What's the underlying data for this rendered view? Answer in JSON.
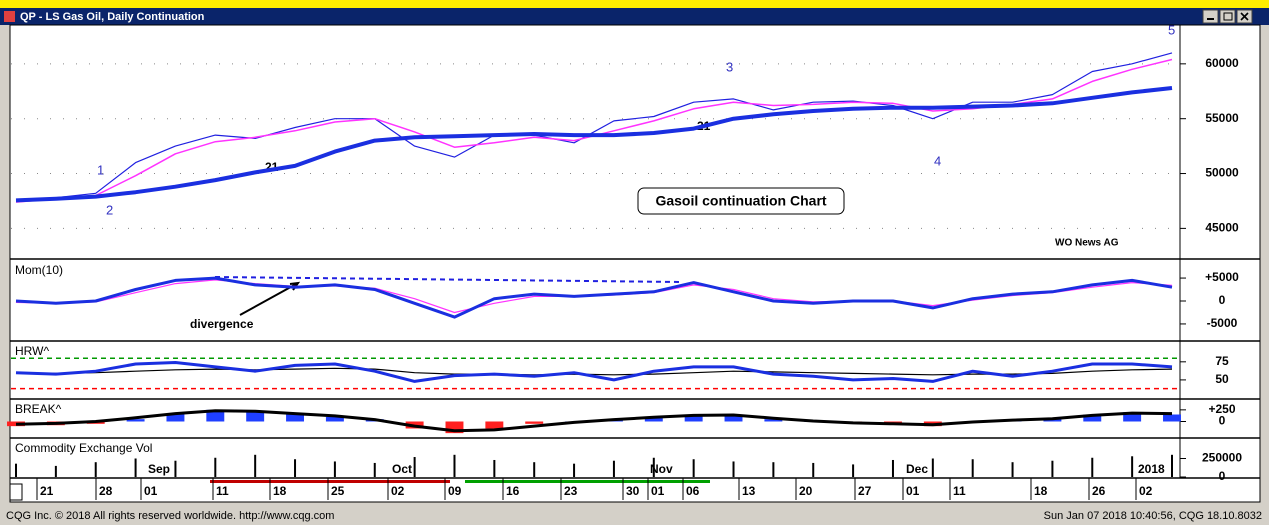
{
  "window": {
    "title": "QP - LS Gas Oil, Daily Continuation"
  },
  "chart_data": [
    {
      "type": "line",
      "ylim": [
        42300,
        63450
      ],
      "yticks": [
        45000,
        50000,
        55000,
        60000
      ],
      "grid": true,
      "series": [
        {
          "color": "#2020e0",
          "width": 1.2,
          "values": [
            47500,
            47800,
            48200,
            51000,
            52500,
            53500,
            53200,
            54200,
            55000,
            55000,
            52500,
            51500,
            53500,
            53500,
            52800,
            54800,
            55200,
            56500,
            56800,
            55800,
            56500,
            56600,
            56200,
            55000,
            56500,
            56500,
            57200,
            59300,
            60000,
            61000
          ]
        },
        {
          "color": "#ff33ff",
          "width": 1.5,
          "values": [
            47400,
            47700,
            48000,
            49800,
            51800,
            52900,
            53300,
            53900,
            54700,
            55000,
            53800,
            52400,
            52800,
            53300,
            53000,
            53900,
            54800,
            55900,
            56500,
            56200,
            56300,
            56500,
            56400,
            55700,
            55900,
            56300,
            56800,
            58400,
            59500,
            60400
          ]
        },
        {
          "color": "#1a2fe0",
          "width": 4,
          "values": [
            47550,
            47700,
            47900,
            48300,
            48800,
            49400,
            50100,
            50700,
            52000,
            53000,
            53300,
            53400,
            53500,
            53600,
            53500,
            53500,
            53700,
            54100,
            55000,
            55400,
            55700,
            55900,
            56000,
            56000,
            56100,
            56200,
            56400,
            56900,
            57400,
            57800
          ]
        }
      ]
    },
    {
      "type": "line",
      "title": "Mom(10)",
      "ylim": [
        -8500,
        8500
      ],
      "yticks": [
        {
          "value": 5000,
          "label": "+5000"
        },
        0,
        -5000
      ],
      "series": [
        {
          "color": "#ff33ff",
          "width": 1.2,
          "values": [
            -300,
            -500,
            -200,
            1800,
            3800,
            4600,
            3800,
            3200,
            3300,
            2800,
            500,
            -2500,
            -500,
            1000,
            1000,
            1300,
            1800,
            3500,
            2500,
            500,
            -200,
            0,
            0,
            -1000,
            200,
            1200,
            1800,
            3000,
            4000,
            3400
          ]
        },
        {
          "color": "#1a2fe0",
          "width": 3,
          "values": [
            0,
            -500,
            0,
            2500,
            4500,
            5000,
            3500,
            3000,
            3500,
            2500,
            -500,
            -3500,
            500,
            1500,
            1000,
            1500,
            2000,
            4000,
            2000,
            0,
            -500,
            0,
            0,
            -1500,
            500,
            1500,
            2000,
            3500,
            4500,
            3000
          ]
        }
      ]
    },
    {
      "type": "line",
      "title": "HRW^",
      "ylim": [
        25,
        101
      ],
      "yticks": [
        75,
        50
      ],
      "reference_lines": [
        {
          "value": 80,
          "color": "#009900"
        },
        {
          "value": 38,
          "color": "#ff0000"
        }
      ],
      "series": [
        {
          "color": "#000000",
          "width": 1.2,
          "values": [
            60,
            59,
            60,
            62,
            64,
            65,
            64,
            65,
            66,
            65,
            60,
            58,
            58,
            57,
            58,
            57,
            58,
            60,
            62,
            61,
            60,
            59,
            58,
            57,
            58,
            58,
            59,
            62,
            64,
            65
          ]
        },
        {
          "color": "#1a2fe0",
          "width": 3,
          "values": [
            60,
            58,
            62,
            72,
            74,
            68,
            62,
            70,
            72,
            62,
            48,
            56,
            58,
            55,
            60,
            50,
            62,
            68,
            68,
            58,
            55,
            50,
            52,
            48,
            62,
            55,
            62,
            72,
            72,
            68
          ]
        }
      ]
    },
    {
      "type": "bar",
      "title": "BREAK^",
      "ylim": [
        -333,
        440
      ],
      "yticks": [
        {
          "value": 250,
          "label": "+250"
        },
        0
      ],
      "series": [
        {
          "color": "#1f3fff",
          "negative_color": "#ff2020",
          "values": [
            -100,
            -80,
            -50,
            50,
            150,
            250,
            200,
            150,
            100,
            50,
            -150,
            -250,
            -150,
            -50,
            0,
            50,
            100,
            150,
            150,
            50,
            0,
            -50,
            -50,
            -100,
            0,
            50,
            50,
            150,
            200,
            150
          ]
        },
        {
          "style": "line",
          "color": "#000000",
          "width": 3,
          "values": [
            -60,
            -40,
            0,
            80,
            170,
            230,
            220,
            170,
            120,
            40,
            -100,
            -200,
            -180,
            -100,
            -20,
            40,
            90,
            130,
            140,
            70,
            10,
            -30,
            -50,
            -70,
            -10,
            30,
            60,
            130,
            180,
            170
          ]
        }
      ]
    },
    {
      "type": "bar",
      "title": "Commodity Exchange Vol",
      "ylim": [
        0,
        500000
      ],
      "yticks": [
        250000,
        0
      ],
      "series": [
        {
          "color": "#000000",
          "width": 2,
          "values": [
            180000,
            150000,
            200000,
            250000,
            220000,
            260000,
            300000,
            240000,
            210000,
            190000,
            270000,
            300000,
            230000,
            200000,
            180000,
            220000,
            260000,
            240000,
            210000,
            200000,
            190000,
            170000,
            230000,
            250000,
            240000,
            200000,
            220000,
            260000,
            280000,
            300000
          ]
        }
      ]
    }
  ],
  "annotations": {
    "ma_label_1": "21",
    "ma_label_2": "21",
    "box": "Gasoil continuation Chart",
    "source": "WO News AG",
    "divergence": "divergence",
    "wave_1": "1",
    "wave_2": "2",
    "wave_3": "3",
    "wave_4": "4",
    "wave_5": "5"
  },
  "x_axis": {
    "labels": [
      "21",
      "28",
      "01",
      "11",
      "18",
      "25",
      "02",
      "09",
      "16",
      "23",
      "30",
      "01",
      "06",
      "13",
      "20",
      "27",
      "01",
      "11",
      "18",
      "26",
      "02"
    ],
    "months": [
      "Sep",
      "Oct",
      "Nov",
      "Dec",
      "2018"
    ]
  },
  "footer": {
    "left": "CQG Inc. © 2018 All rights reserved worldwide. http://www.cqg.com",
    "right": "Sun Jan 07 2018 10:40:56, CQG 18.10.8032"
  }
}
